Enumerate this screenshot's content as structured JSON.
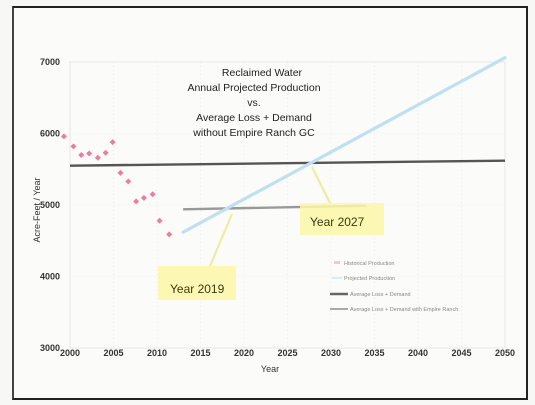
{
  "chart_data": {
    "type": "line",
    "title_lines": [
      "Reclaimed Water",
      "Annual Projected Production",
      "vs.",
      "Average Loss + Demand",
      "without Empire Ranch GC"
    ],
    "xlabel": "Year",
    "ylabel": "Acre-Feet / Year",
    "xlim": [
      2000,
      2050
    ],
    "ylim": [
      3000,
      7000
    ],
    "x_ticks": [
      "2000",
      "2005",
      "2010",
      "2015",
      "2020",
      "2025",
      "2030",
      "2035",
      "2040",
      "2045",
      "2050"
    ],
    "y_ticks": [
      "3000",
      "4000",
      "5000",
      "6000",
      "7000"
    ],
    "legend": {
      "placement": "bottom-right",
      "entries": [
        "Historical Production",
        "Projected Production",
        "Average Loss + Demand",
        "Average Loss + Demand with Empire Ranch"
      ]
    },
    "series": [
      {
        "key": "historical",
        "color": "#f07aa6",
        "points": [
          [
            1999.3,
            5960
          ],
          [
            2000.4,
            5820
          ],
          [
            2001.3,
            5700
          ],
          [
            2002.2,
            5720
          ],
          [
            2003.2,
            5660
          ],
          [
            2004.1,
            5730
          ],
          [
            2004.9,
            5880
          ],
          [
            2005.8,
            5450
          ],
          [
            2006.7,
            5330
          ],
          [
            2007.6,
            5050
          ],
          [
            2008.5,
            5100
          ],
          [
            2009.5,
            5150
          ],
          [
            2010.3,
            4780
          ],
          [
            2011.4,
            4590
          ]
        ]
      },
      {
        "key": "projected",
        "color": "#bfe0f2",
        "points": [
          [
            2013,
            4620
          ],
          [
            2050,
            7060
          ]
        ]
      },
      {
        "key": "demand_without",
        "color": "#555555",
        "points": [
          [
            2000,
            5550
          ],
          [
            2050,
            5620
          ]
        ]
      },
      {
        "key": "demand_with",
        "color": "#999999",
        "points": [
          [
            2013,
            4940
          ],
          [
            2034,
            4990
          ]
        ]
      }
    ],
    "annotations": [
      {
        "label": "Year 2019",
        "x": 2019
      },
      {
        "label": "Year 2027",
        "x": 2027
      }
    ]
  }
}
